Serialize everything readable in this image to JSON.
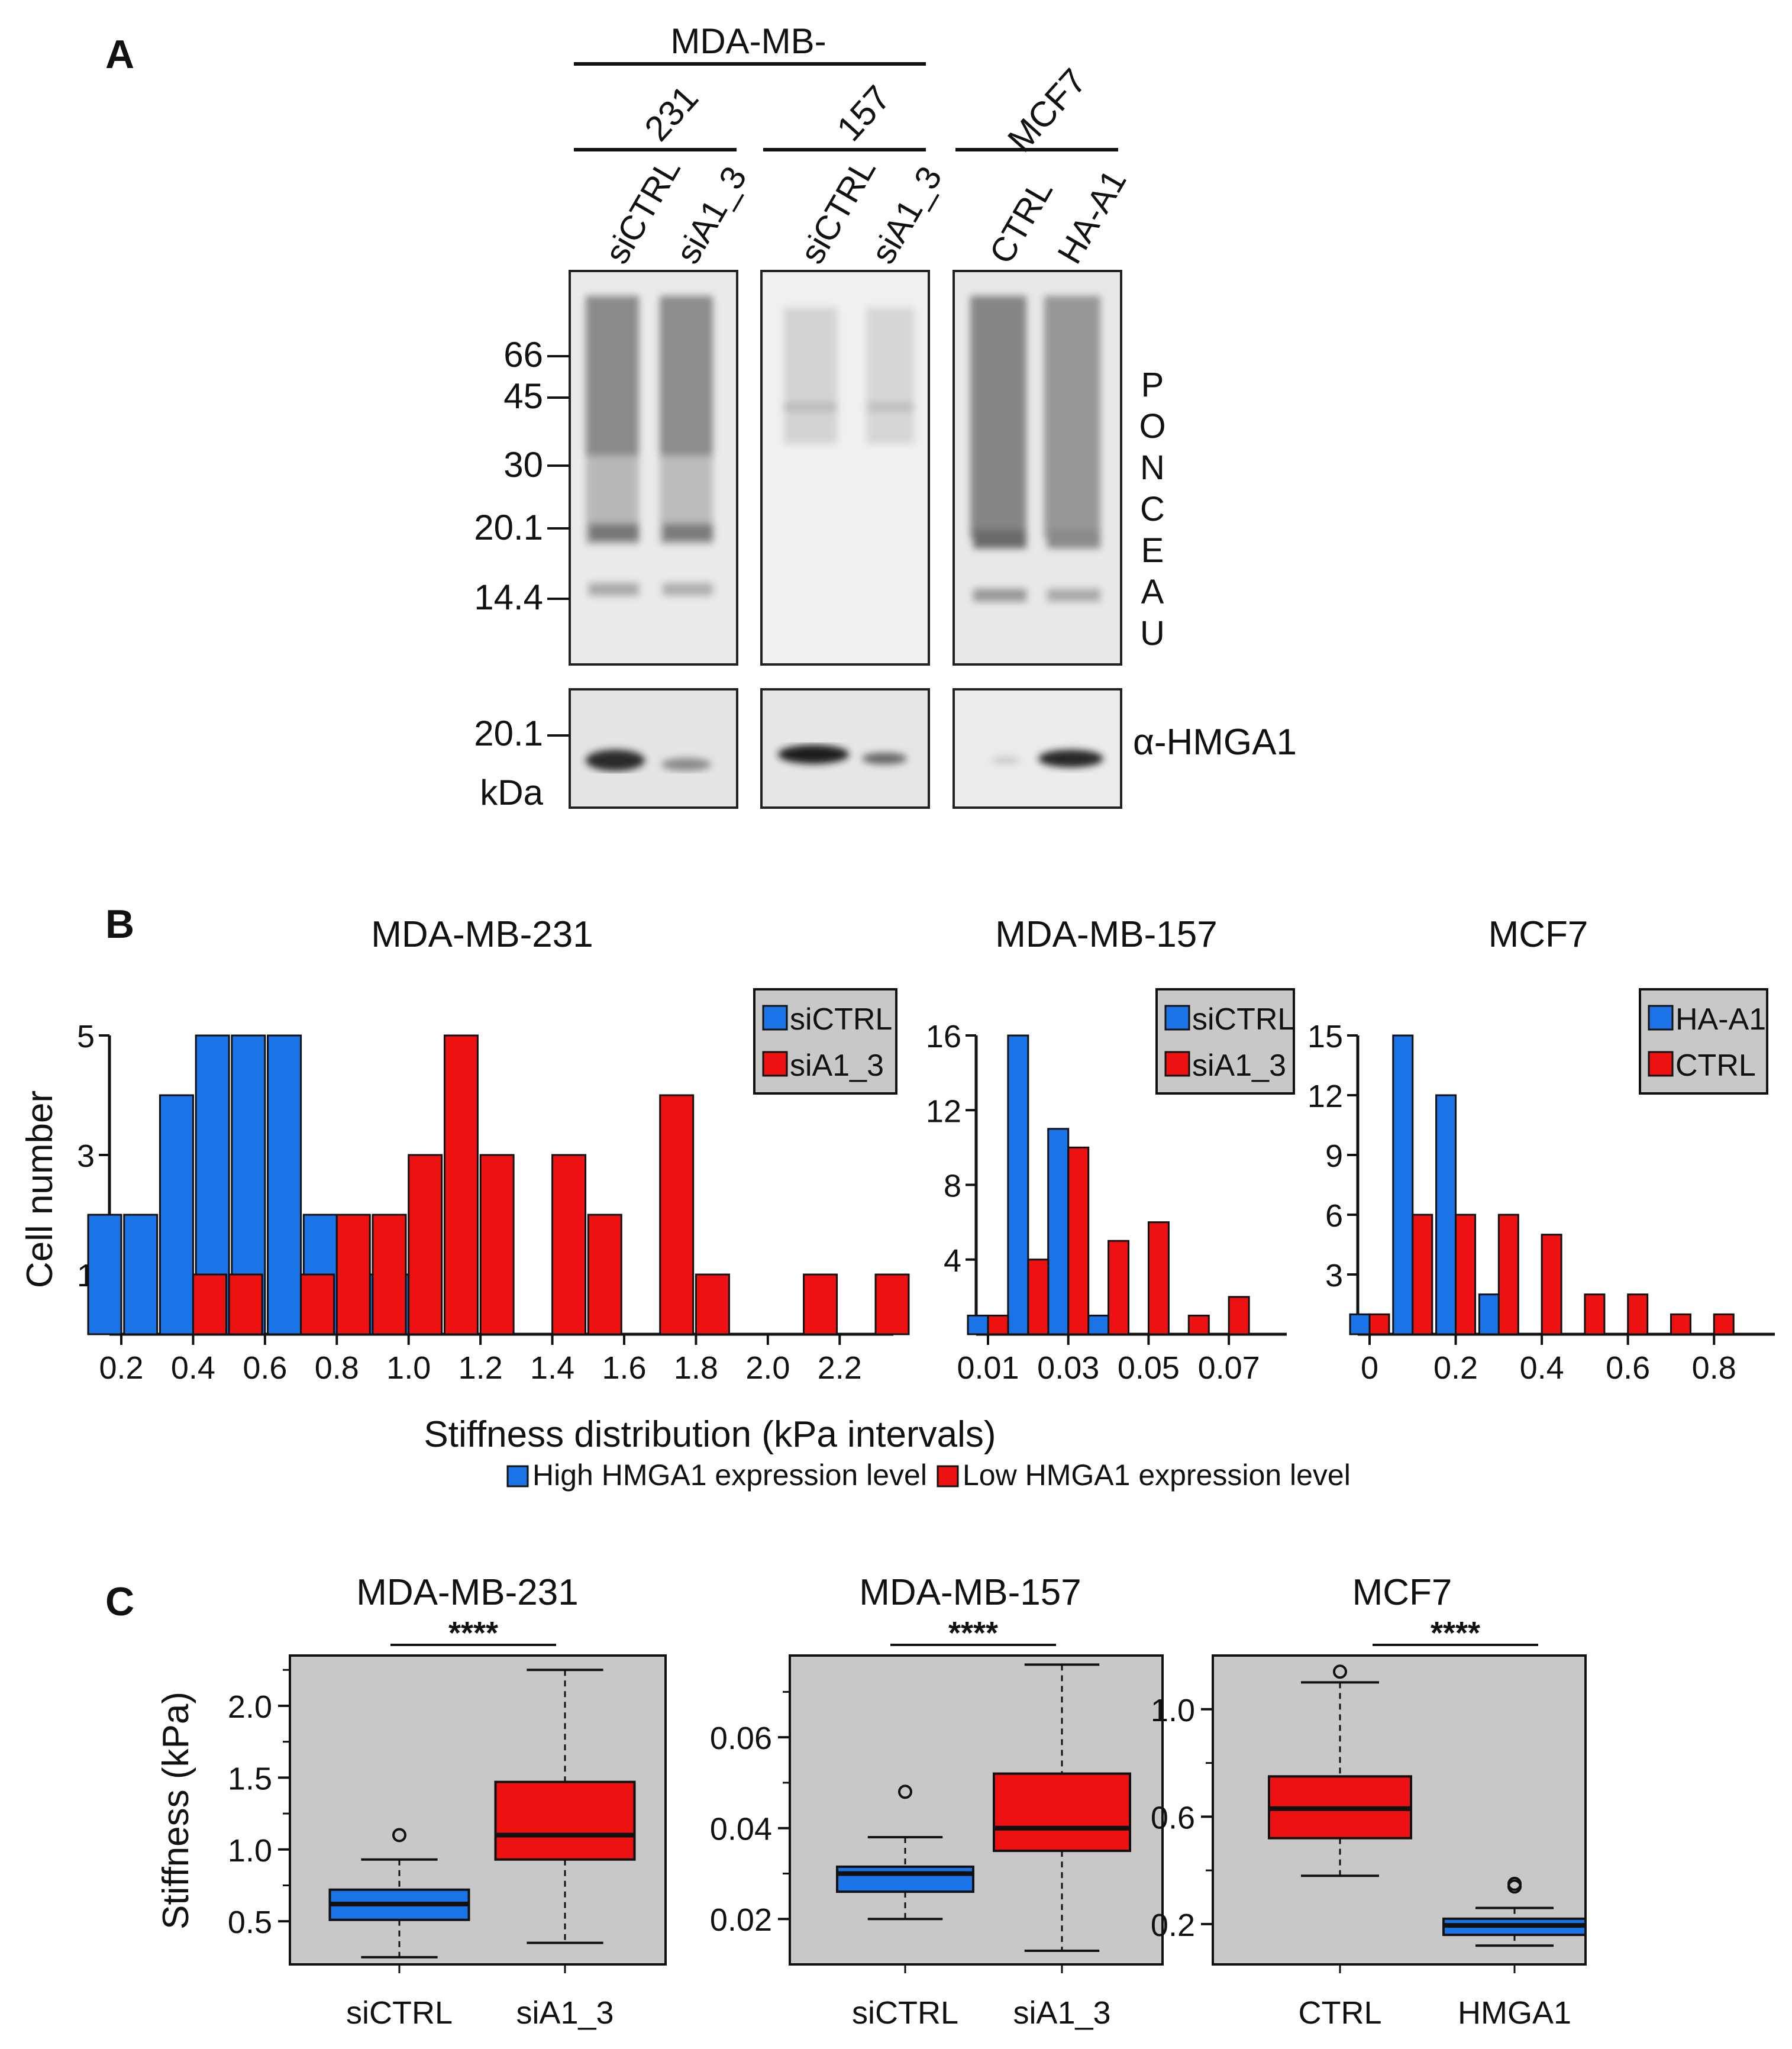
{
  "panels": {
    "a": "A",
    "b": "B",
    "c": "C"
  },
  "blot": {
    "group_label": "MDA-MB-",
    "cell_lines": [
      "231",
      "157",
      "MCF7"
    ],
    "lanes": [
      "siCTRL",
      "siA1_3",
      "siCTRL",
      "siA1_3",
      "CTRL",
      "HA-A1"
    ],
    "mw_markers": [
      "66",
      "45",
      "30",
      "20.1",
      "14.4"
    ],
    "stain_letters": [
      "P",
      "O",
      "N",
      "C",
      "E",
      "A",
      "U"
    ],
    "antibody_marker": "20.1",
    "unit": "kDa",
    "antibody": "α-HMGA1"
  },
  "chart_data": [
    {
      "type": "bar",
      "panel": "B",
      "title": "MDA-MB-231",
      "ylabel": "Cell number",
      "xlabel": "Stiffness distribution (kPa intervals)",
      "xlim": [
        0.2,
        2.3
      ],
      "ylim": [
        0,
        5
      ],
      "yticks": [
        1,
        3,
        5
      ],
      "xticks": [
        "0.2",
        "0.4",
        "0.6",
        "0.8",
        "1.0",
        "1.2",
        "1.4",
        "1.6",
        "1.8",
        "2.0",
        "2.2"
      ],
      "bin_width": 0.1,
      "series": [
        {
          "name": "siCTRL",
          "color": "#1a74e8",
          "bins": [
            [
              0.2,
              2
            ],
            [
              0.3,
              2
            ],
            [
              0.4,
              4
            ],
            [
              0.5,
              5
            ],
            [
              0.6,
              5
            ],
            [
              0.7,
              5
            ],
            [
              0.8,
              2
            ],
            [
              0.9,
              1
            ],
            [
              1.0,
              1
            ]
          ]
        },
        {
          "name": "siA1_3",
          "color": "#ee1111",
          "bins": [
            [
              0.4,
              1
            ],
            [
              0.5,
              1
            ],
            [
              0.7,
              1
            ],
            [
              0.8,
              2
            ],
            [
              0.9,
              2
            ],
            [
              1.0,
              3
            ],
            [
              1.1,
              5
            ],
            [
              1.2,
              3
            ],
            [
              1.4,
              3
            ],
            [
              1.5,
              2
            ],
            [
              1.7,
              4
            ],
            [
              1.8,
              1
            ],
            [
              2.1,
              1
            ],
            [
              2.3,
              1
            ]
          ]
        }
      ],
      "legend": [
        "siCTRL",
        "siA1_3"
      ]
    },
    {
      "type": "bar",
      "panel": "B",
      "title": "MDA-MB-157",
      "xlim": [
        0.01,
        0.08
      ],
      "ylim": [
        0,
        16
      ],
      "yticks": [
        4,
        8,
        12,
        16
      ],
      "xticks": [
        "0.01",
        "0.03",
        "0.05",
        "0.07"
      ],
      "bin_width": 0.01,
      "series": [
        {
          "name": "siCTRL",
          "color": "#1a74e8",
          "bins": [
            [
              0.01,
              1
            ],
            [
              0.02,
              16
            ],
            [
              0.03,
              11
            ],
            [
              0.04,
              1
            ]
          ]
        },
        {
          "name": "siA1_3",
          "color": "#ee1111",
          "bins": [
            [
              0.01,
              1
            ],
            [
              0.02,
              4
            ],
            [
              0.03,
              10
            ],
            [
              0.04,
              5
            ],
            [
              0.05,
              6
            ],
            [
              0.06,
              1
            ],
            [
              0.07,
              2
            ]
          ]
        }
      ],
      "legend": [
        "siCTRL",
        "siA1_3"
      ]
    },
    {
      "type": "bar",
      "panel": "B",
      "title": "MCF7",
      "xlim": [
        0,
        0.9
      ],
      "ylim": [
        0,
        15
      ],
      "yticks": [
        3,
        6,
        9,
        12,
        15
      ],
      "xticks": [
        "0",
        "0.2",
        "0.4",
        "0.6",
        "0.8"
      ],
      "bin_width": 0.1,
      "series": [
        {
          "name": "HA-A1",
          "color": "#1a74e8",
          "bins": [
            [
              0,
              1
            ],
            [
              0.1,
              15
            ],
            [
              0.2,
              12
            ],
            [
              0.3,
              2
            ]
          ]
        },
        {
          "name": "CTRL",
          "color": "#ee1111",
          "bins": [
            [
              0,
              1
            ],
            [
              0.1,
              6
            ],
            [
              0.2,
              6
            ],
            [
              0.3,
              6
            ],
            [
              0.4,
              5
            ],
            [
              0.5,
              2
            ],
            [
              0.6,
              2
            ],
            [
              0.7,
              1
            ],
            [
              0.8,
              1
            ]
          ]
        }
      ],
      "legend": [
        "HA-A1",
        "CTRL"
      ]
    },
    {
      "type": "box",
      "panel": "C",
      "title": "MDA-MB-231",
      "ylabel": "Stiffness (kPa)",
      "ylim": [
        0.2,
        2.35
      ],
      "yticks": [
        "0.5",
        "1.0",
        "1.5",
        "2.0"
      ],
      "significance": "****",
      "categories": [
        "siCTRL",
        "siA1_3"
      ],
      "boxes": [
        {
          "color": "#1a74e8",
          "min": 0.25,
          "q1": 0.51,
          "median": 0.62,
          "q3": 0.72,
          "max": 0.93,
          "outliers": [
            1.1
          ]
        },
        {
          "color": "#ee1111",
          "min": 0.35,
          "q1": 0.93,
          "median": 1.1,
          "q3": 1.47,
          "max": 2.25,
          "outliers": []
        }
      ]
    },
    {
      "type": "box",
      "panel": "C",
      "title": "MDA-MB-157",
      "ylim": [
        0.01,
        0.078
      ],
      "yticks": [
        "0.02",
        "0.04",
        "0.06"
      ],
      "significance": "****",
      "categories": [
        "siCTRL",
        "siA1_3"
      ],
      "boxes": [
        {
          "color": "#1a74e8",
          "min": 0.02,
          "q1": 0.026,
          "median": 0.03,
          "q3": 0.0315,
          "max": 0.038,
          "outliers": [
            0.048
          ]
        },
        {
          "color": "#ee1111",
          "min": 0.013,
          "q1": 0.035,
          "median": 0.04,
          "q3": 0.052,
          "max": 0.076,
          "outliers": []
        }
      ]
    },
    {
      "type": "box",
      "panel": "C",
      "title": "MCF7",
      "ylim": [
        0.05,
        1.2
      ],
      "yticks": [
        "0.2",
        "0.6",
        "1.0"
      ],
      "significance": "****",
      "categories": [
        "CTRL",
        "HMGA1"
      ],
      "boxes": [
        {
          "color": "#ee1111",
          "min": 0.38,
          "q1": 0.52,
          "median": 0.63,
          "q3": 0.75,
          "max": 1.1,
          "outliers": [
            1.14
          ]
        },
        {
          "color": "#1a74e8",
          "min": 0.12,
          "q1": 0.16,
          "median": 0.195,
          "q3": 0.22,
          "max": 0.26,
          "outliers": [
            0.34,
            0.35
          ]
        }
      ]
    }
  ],
  "bottom_legend": [
    "High HMGA1 expression level",
    "Low HMGA1 expression level"
  ]
}
